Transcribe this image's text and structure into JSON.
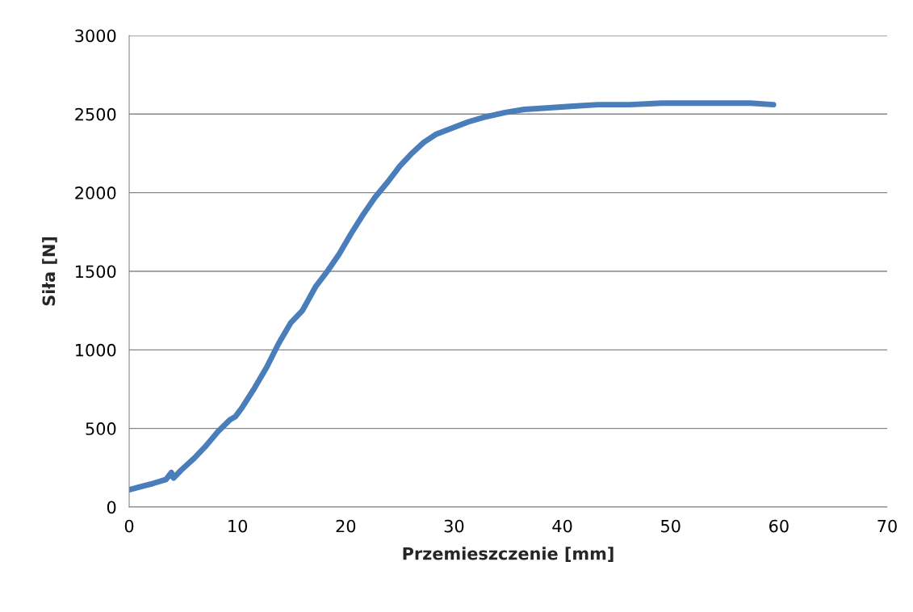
{
  "chart_data": {
    "type": "line",
    "xlabel": "Przemieszczenie [mm]",
    "ylabel": "Siła [N]",
    "xlim": [
      0,
      70
    ],
    "xticks": [
      0,
      10,
      20,
      30,
      40,
      50,
      60,
      70
    ],
    "ylim": [
      0,
      3000
    ],
    "yticks": [
      0,
      500,
      1000,
      1500,
      2000,
      2500,
      3000
    ],
    "grid": "y",
    "marker": "none",
    "line_style": "solid",
    "series": [
      {
        "color": "#4a7ebb",
        "x": [
          0,
          1.1,
          2.2,
          3.4,
          3.9,
          4.1,
          4.8,
          6,
          7.1,
          8.2,
          9.3,
          9.8,
          10.4,
          11.6,
          12.7,
          13.8,
          14.9,
          16,
          17.2,
          18.3,
          19.4,
          20.5,
          21.6,
          22.7,
          23.9,
          25,
          26.1,
          27.2,
          28.3,
          29.8,
          31.3,
          32.8,
          34.7,
          36.5,
          38.8,
          41,
          43.3,
          46.2,
          49.2,
          52.2,
          55.2,
          57.4,
          59.5
        ],
        "values": [
          110,
          130,
          150,
          175,
          220,
          185,
          235,
          310,
          390,
          480,
          555,
          575,
          630,
          760,
          890,
          1040,
          1170,
          1250,
          1400,
          1500,
          1610,
          1740,
          1860,
          1970,
          2070,
          2170,
          2250,
          2320,
          2370,
          2410,
          2450,
          2480,
          2510,
          2530,
          2540,
          2550,
          2560,
          2560,
          2570,
          2570,
          2570,
          2570,
          2560
        ]
      }
    ]
  }
}
